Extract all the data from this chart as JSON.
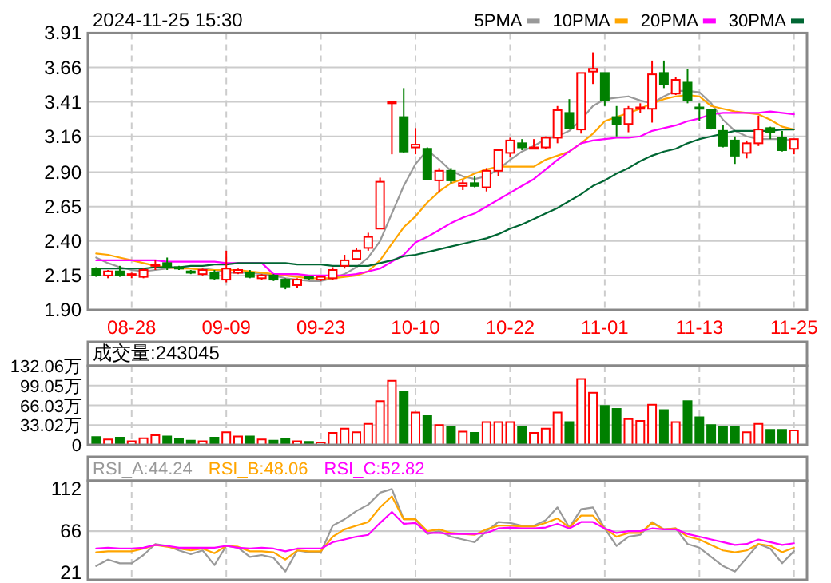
{
  "chart_data": [
    {
      "type": "candlestick",
      "title": "2024-11-25 15:30",
      "legend": "top right",
      "grid": true,
      "categories": [
        null,
        null,
        null,
        "08-28",
        null,
        null,
        null,
        null,
        null,
        null,
        null,
        "09-09",
        null,
        null,
        null,
        null,
        null,
        null,
        null,
        "09-23",
        null,
        null,
        null,
        null,
        null,
        null,
        null,
        "10-10",
        null,
        null,
        null,
        null,
        null,
        null,
        null,
        "10-22",
        null,
        null,
        null,
        null,
        null,
        null,
        null,
        "11-01",
        null,
        null,
        null,
        null,
        null,
        null,
        null,
        "11-13",
        null,
        null,
        null,
        null,
        null,
        null,
        null,
        "11-25"
      ],
      "ylim": [
        1.9,
        3.91
      ],
      "yticks": [
        {
          "value": 1.9,
          "label": "1.90"
        },
        2.15,
        {
          "value": 2.4,
          "label": "2.40"
        },
        2.65,
        {
          "value": 2.9,
          "label": "2.90"
        },
        3.16,
        3.41,
        3.66,
        3.91
      ],
      "ohlc": [
        [
          2.2,
          2.21,
          2.14,
          2.15
        ],
        [
          2.15,
          2.19,
          2.13,
          2.18
        ],
        [
          2.18,
          2.22,
          2.14,
          2.15
        ],
        [
          2.15,
          2.17,
          2.13,
          2.16
        ],
        [
          2.14,
          2.2,
          2.13,
          2.19
        ],
        [
          2.22,
          2.26,
          2.19,
          2.23
        ],
        [
          2.24,
          2.28,
          2.19,
          2.21
        ],
        [
          2.21,
          2.22,
          2.19,
          2.2
        ],
        [
          2.18,
          2.19,
          2.16,
          2.17
        ],
        [
          2.16,
          2.2,
          2.15,
          2.19
        ],
        [
          2.17,
          2.19,
          2.12,
          2.13
        ],
        [
          2.12,
          2.33,
          2.1,
          2.2
        ],
        [
          2.17,
          2.2,
          2.16,
          2.19
        ],
        [
          2.17,
          2.19,
          2.13,
          2.14
        ],
        [
          2.13,
          2.16,
          2.12,
          2.15
        ],
        [
          2.15,
          2.16,
          2.11,
          2.12
        ],
        [
          2.12,
          2.13,
          2.05,
          2.07
        ],
        [
          2.08,
          2.13,
          2.06,
          2.12
        ],
        [
          2.14,
          2.14,
          2.12,
          2.13
        ],
        [
          2.12,
          2.15,
          2.11,
          2.14
        ],
        [
          2.13,
          2.21,
          2.12,
          2.19
        ],
        [
          2.22,
          2.3,
          2.2,
          2.26
        ],
        [
          2.27,
          2.35,
          2.26,
          2.33
        ],
        [
          2.35,
          2.46,
          2.33,
          2.43
        ],
        [
          2.49,
          2.86,
          2.49,
          2.83
        ],
        [
          3.4,
          3.41,
          3.03,
          3.41
        ],
        [
          3.3,
          3.51,
          3.04,
          3.05
        ],
        [
          3.08,
          3.22,
          3.03,
          3.1
        ],
        [
          3.07,
          3.08,
          2.84,
          2.85
        ],
        [
          2.84,
          2.93,
          2.75,
          2.91
        ],
        [
          2.91,
          2.93,
          2.82,
          2.84
        ],
        [
          2.8,
          2.84,
          2.77,
          2.82
        ],
        [
          2.82,
          2.87,
          2.79,
          2.8
        ],
        [
          2.79,
          2.93,
          2.76,
          2.91
        ],
        [
          2.91,
          3.06,
          2.87,
          3.06
        ],
        [
          3.04,
          3.15,
          3.01,
          3.13
        ],
        [
          3.11,
          3.14,
          3.06,
          3.08
        ],
        [
          3.07,
          3.14,
          3.07,
          3.08
        ],
        [
          3.08,
          3.16,
          3.07,
          3.15
        ],
        [
          3.15,
          3.38,
          3.11,
          3.35
        ],
        [
          3.33,
          3.43,
          3.21,
          3.22
        ],
        [
          3.21,
          3.62,
          3.18,
          3.62
        ],
        [
          3.63,
          3.77,
          3.54,
          3.65
        ],
        [
          3.62,
          3.62,
          3.38,
          3.42
        ],
        [
          3.3,
          3.38,
          3.16,
          3.25
        ],
        [
          3.25,
          3.38,
          3.19,
          3.36
        ],
        [
          3.36,
          3.4,
          3.33,
          3.37
        ],
        [
          3.36,
          3.71,
          3.26,
          3.61
        ],
        [
          3.62,
          3.71,
          3.51,
          3.54
        ],
        [
          3.47,
          3.59,
          3.46,
          3.57
        ],
        [
          3.55,
          3.65,
          3.4,
          3.42
        ],
        [
          3.37,
          3.4,
          3.27,
          3.36
        ],
        [
          3.35,
          3.36,
          3.21,
          3.22
        ],
        [
          3.2,
          3.24,
          3.08,
          3.09
        ],
        [
          3.13,
          3.16,
          2.96,
          3.02
        ],
        [
          3.04,
          3.13,
          3.0,
          3.11
        ],
        [
          3.11,
          3.31,
          3.09,
          3.21
        ],
        [
          3.22,
          3.23,
          3.14,
          3.19
        ],
        [
          3.15,
          3.2,
          3.05,
          3.06
        ],
        [
          3.07,
          3.14,
          3.03,
          3.14
        ]
      ],
      "series": [
        {
          "name": "5PMA",
          "type": "line",
          "color": "#999999",
          "values": [
            2.28,
            2.24,
            2.21,
            2.19,
            2.18,
            2.19,
            2.2,
            2.21,
            2.2,
            2.2,
            2.19,
            2.17,
            2.17,
            2.17,
            2.16,
            2.15,
            2.13,
            2.12,
            2.11,
            2.11,
            2.13,
            2.16,
            2.21,
            2.28,
            2.4,
            2.6,
            2.8,
            2.96,
            3.06,
            2.99,
            2.91,
            2.87,
            2.85,
            2.87,
            2.92,
            2.99,
            3.05,
            3.09,
            3.14,
            3.16,
            3.2,
            3.28,
            3.38,
            3.43,
            3.44,
            3.45,
            3.42,
            3.4,
            3.45,
            3.49,
            3.49,
            3.48,
            3.4,
            3.28,
            3.2,
            3.16,
            3.14,
            3.14,
            3.14,
            3.13
          ]
        },
        {
          "name": "10PMA",
          "type": "line",
          "color": "#ffa500",
          "values": [
            2.31,
            2.3,
            2.28,
            2.26,
            2.24,
            2.22,
            2.21,
            2.2,
            2.2,
            2.19,
            2.19,
            2.19,
            2.19,
            2.18,
            2.17,
            2.16,
            2.15,
            2.14,
            2.13,
            2.13,
            2.13,
            2.14,
            2.15,
            2.18,
            2.26,
            2.38,
            2.5,
            2.58,
            2.68,
            2.76,
            2.82,
            2.85,
            2.89,
            2.92,
            2.94,
            2.94,
            2.94,
            2.94,
            2.99,
            3.02,
            3.05,
            3.11,
            3.18,
            3.27,
            3.3,
            3.33,
            3.36,
            3.4,
            3.43,
            3.45,
            3.46,
            3.45,
            3.38,
            3.36,
            3.34,
            3.33,
            3.32,
            3.28,
            3.23,
            3.21
          ]
        },
        {
          "name": "20PMA",
          "type": "line",
          "color": "#ff00ff",
          "values": [
            2.26,
            2.26,
            2.26,
            2.26,
            2.26,
            2.26,
            2.25,
            2.25,
            2.25,
            2.25,
            2.25,
            2.24,
            2.24,
            2.24,
            2.24,
            2.16,
            2.16,
            2.16,
            2.15,
            2.15,
            2.15,
            2.15,
            2.16,
            2.18,
            2.2,
            2.25,
            2.3,
            2.39,
            2.43,
            2.48,
            2.53,
            2.57,
            2.6,
            2.65,
            2.7,
            2.75,
            2.8,
            2.85,
            2.92,
            2.99,
            3.05,
            3.11,
            3.13,
            3.14,
            3.15,
            3.15,
            3.16,
            3.2,
            3.22,
            3.24,
            3.27,
            3.29,
            3.32,
            3.33,
            3.33,
            3.33,
            3.33,
            3.34,
            3.33,
            3.32
          ]
        },
        {
          "name": "30PMA",
          "type": "line",
          "color": "#006633",
          "values": [
            2.2,
            2.2,
            2.2,
            2.2,
            2.2,
            2.21,
            2.21,
            2.21,
            2.22,
            2.22,
            2.23,
            2.23,
            2.24,
            2.24,
            2.24,
            2.24,
            2.24,
            2.23,
            2.23,
            2.23,
            2.22,
            2.22,
            2.22,
            2.22,
            2.24,
            2.26,
            2.29,
            2.3,
            2.32,
            2.34,
            2.36,
            2.38,
            2.4,
            2.42,
            2.45,
            2.49,
            2.52,
            2.56,
            2.6,
            2.64,
            2.69,
            2.74,
            2.8,
            2.84,
            2.89,
            2.93,
            2.98,
            3.02,
            3.05,
            3.07,
            3.11,
            3.14,
            3.16,
            3.18,
            3.2,
            3.2,
            3.2,
            3.2,
            3.21,
            3.21
          ]
        }
      ]
    },
    {
      "type": "bar",
      "title": "成交量:243045",
      "grid": true,
      "categories": [
        null,
        null,
        null,
        null,
        null,
        null,
        null,
        null,
        null,
        null,
        null,
        null,
        null,
        null,
        null,
        null,
        null,
        null,
        null,
        null,
        null,
        null,
        null,
        null,
        null,
        null,
        null,
        null,
        null,
        null,
        null,
        null,
        null,
        null,
        null,
        null,
        null,
        null,
        null,
        null,
        null,
        null,
        null,
        null,
        null,
        null,
        null,
        null,
        null,
        null,
        null,
        null,
        null,
        null,
        null,
        null,
        null,
        null,
        null,
        null
      ],
      "ylim": [
        0,
        132.06
      ],
      "yticks": [
        0,
        {
          "value": 33.02,
          "label": "33.02万"
        },
        {
          "value": 66.03,
          "label": "66.03万"
        },
        {
          "value": 99.05,
          "label": "99.05万"
        },
        {
          "value": 132.06,
          "label": "132.06万"
        }
      ],
      "values": [
        13,
        9,
        12,
        6,
        11,
        16,
        14,
        10,
        7,
        6,
        12,
        21,
        14,
        14,
        9,
        7,
        10,
        6,
        5,
        4,
        20,
        27,
        21,
        35,
        73,
        107,
        89,
        54,
        48,
        33,
        30,
        22,
        20,
        38,
        38,
        38,
        30,
        20,
        27,
        54,
        38,
        110,
        87,
        65,
        60,
        43,
        40,
        67,
        58,
        38,
        73,
        46,
        33,
        30,
        30,
        21,
        35,
        25,
        25,
        24
      ],
      "colors": [
        "#008000",
        "#ff0000",
        "#008000",
        "#ff0000",
        "#ff0000",
        "#ff0000",
        "#008000",
        "#008000",
        "#008000",
        "#ff0000",
        "#008000",
        "#ff0000",
        "#ff0000",
        "#008000",
        "#ff0000",
        "#008000",
        "#008000",
        "#ff0000",
        "#008000",
        "#ff0000",
        "#ff0000",
        "#ff0000",
        "#ff0000",
        "#ff0000",
        "#ff0000",
        "#ff0000",
        "#008000",
        "#ff0000",
        "#008000",
        "#ff0000",
        "#008000",
        "#ff0000",
        "#008000",
        "#ff0000",
        "#ff0000",
        "#ff0000",
        "#008000",
        "#ff0000",
        "#ff0000",
        "#ff0000",
        "#008000",
        "#ff0000",
        "#ff0000",
        "#008000",
        "#008000",
        "#ff0000",
        "#ff0000",
        "#ff0000",
        "#008000",
        "#ff0000",
        "#008000",
        "#008000",
        "#008000",
        "#008000",
        "#008000",
        "#ff0000",
        "#ff0000",
        "#008000",
        "#008000",
        "#ff0000"
      ]
    },
    {
      "type": "line",
      "legend": "top left",
      "grid": "x",
      "categories": [
        null,
        null,
        null,
        null,
        null,
        null,
        null,
        null,
        null,
        null,
        null,
        null,
        null,
        null,
        null,
        null,
        null,
        null,
        null,
        null,
        null,
        null,
        null,
        null,
        null,
        null,
        null,
        null,
        null,
        null,
        null,
        null,
        null,
        null,
        null,
        null,
        null,
        null,
        null,
        null,
        null,
        null,
        null,
        null,
        null,
        null,
        null,
        null,
        null,
        null,
        null,
        null,
        null,
        null,
        null,
        null,
        null,
        null,
        null,
        null
      ],
      "ylim": [
        13,
        121
      ],
      "yticks": [
        21,
        66,
        112
      ],
      "ref_lines": [
        {
          "axis": "y",
          "value": 66,
          "color": "#cccccc"
        }
      ],
      "series": [
        {
          "name": "RSI_A:44.24",
          "color": "#999999",
          "values": [
            28,
            35,
            31,
            31,
            40,
            52,
            50,
            45,
            41,
            45,
            29,
            50,
            48,
            38,
            40,
            37,
            22,
            45,
            43,
            43,
            72,
            79,
            88,
            95,
            108,
            112,
            79,
            79,
            63,
            66,
            60,
            57,
            54,
            66,
            76,
            75,
            72,
            72,
            78,
            92,
            70,
            90,
            92,
            69,
            50,
            60,
            62,
            76,
            68,
            69,
            52,
            48,
            38,
            28,
            22,
            37,
            52,
            47,
            31,
            44.24
          ]
        },
        {
          "name": "RSI_B:48.06",
          "color": "#ffa500",
          "values": [
            43,
            44,
            44,
            44,
            47,
            51,
            49,
            47,
            45,
            47,
            42,
            50,
            49,
            44,
            44,
            43,
            35,
            45,
            44,
            44,
            60,
            68,
            72,
            76,
            92,
            104,
            79,
            79,
            66,
            68,
            64,
            63,
            62,
            68,
            72,
            72,
            71,
            71,
            75,
            80,
            70,
            83,
            83,
            69,
            60,
            64,
            64,
            75,
            68,
            69,
            60,
            57,
            51,
            45,
            43,
            45,
            52,
            50,
            43,
            48.06
          ]
        },
        {
          "name": "RSI_C:52.82",
          "color": "#ff00ff",
          "values": [
            47,
            48,
            47,
            47,
            48,
            51,
            50,
            48,
            48,
            48,
            48,
            50,
            48,
            47,
            48,
            47,
            44,
            47,
            47,
            47,
            54,
            57,
            60,
            62,
            75,
            87,
            74,
            75,
            64,
            64,
            63,
            63,
            63,
            64,
            69,
            70,
            69,
            69,
            70,
            74,
            69,
            76,
            76,
            69,
            64,
            66,
            66,
            69,
            68,
            68,
            63,
            60,
            57,
            54,
            51,
            52,
            57,
            54,
            51,
            52.82
          ]
        }
      ]
    }
  ]
}
